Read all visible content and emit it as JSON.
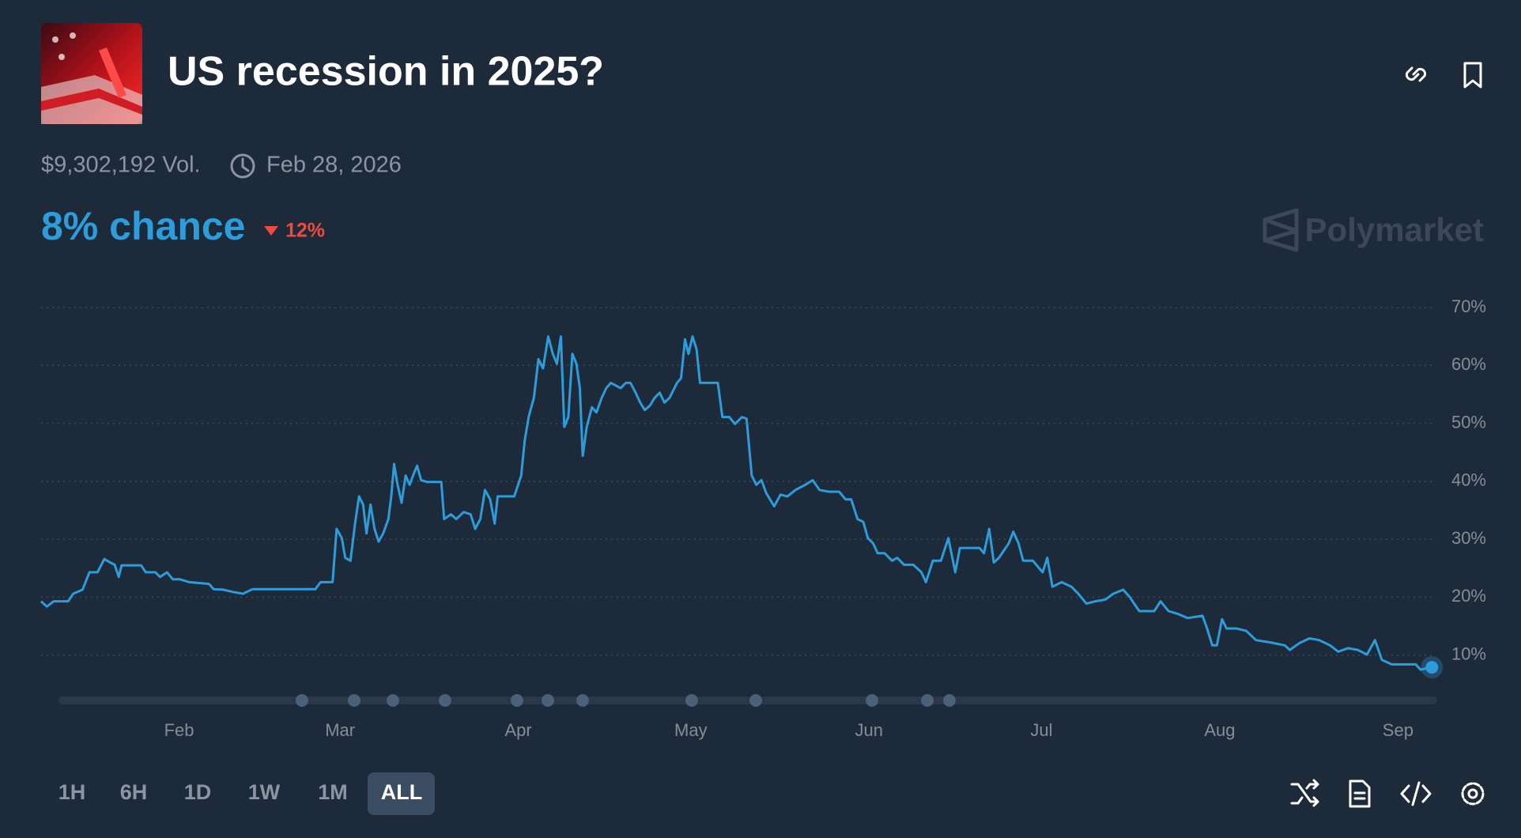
{
  "header": {
    "title": "US recession in 2025?",
    "volume": "$9,302,192 Vol.",
    "end_date": "Feb 28, 2026",
    "chance": "8% chance",
    "change": "12%",
    "brand": "Polymarket"
  },
  "range_buttons": [
    "1H",
    "6H",
    "1D",
    "1W",
    "1M",
    "ALL"
  ],
  "chart_data": {
    "type": "line",
    "color": "#2d9cdb",
    "grid": true,
    "xlim": [
      8,
      250
    ],
    "xticks": [
      {
        "value": 32,
        "label": "Feb"
      },
      {
        "value": 60,
        "label": "Mar"
      },
      {
        "value": 91,
        "label": "Apr"
      },
      {
        "value": 121,
        "label": "May"
      },
      {
        "value": 152,
        "label": "Jun"
      },
      {
        "value": 182,
        "label": "Jul"
      },
      {
        "value": 213,
        "label": "Aug"
      },
      {
        "value": 244,
        "label": "Sep"
      }
    ],
    "ylim": [
      0,
      70
    ],
    "yticks": [
      {
        "value": 10,
        "label": "10%"
      },
      {
        "value": 20,
        "label": "20%"
      },
      {
        "value": 30,
        "label": "30%"
      },
      {
        "value": 40,
        "label": "40%"
      },
      {
        "value": 50,
        "label": "50%"
      },
      {
        "value": 60,
        "label": "60%"
      },
      {
        "value": 70,
        "label": "70%"
      }
    ],
    "x": [
      8.0,
      9.0,
      10.2,
      12.7,
      13.6,
      15.2,
      16.4,
      17.8,
      19.0,
      20.0,
      20.8,
      21.5,
      22.0,
      25.4,
      26.2,
      27.9,
      28.7,
      29.9,
      30.9,
      32.1,
      33.8,
      37.2,
      38.0,
      39.7,
      41.4,
      43.1,
      44.8,
      46.4,
      51.5,
      55.7,
      56.6,
      58.7,
      59.4,
      60.3,
      60.9,
      61.8,
      62.6,
      63.3,
      64.0,
      64.6,
      65.3,
      66.0,
      66.7,
      67.5,
      68.4,
      68.9,
      69.4,
      70.0,
      70.7,
      71.4,
      72.1,
      72.7,
      73.4,
      74.1,
      75.1,
      77.6,
      78.1,
      79.3,
      80.2,
      81.5,
      82.7,
      83.5,
      84.4,
      85.2,
      86.1,
      86.9,
      87.4,
      90.3,
      91.5,
      92.1,
      92.8,
      93.7,
      94.5,
      95.3,
      96.2,
      97.0,
      97.7,
      98.4,
      99.0,
      99.7,
      100.4,
      101.1,
      101.7,
      102.2,
      102.9,
      103.8,
      104.6,
      105.5,
      106.3,
      107.1,
      108.8,
      109.7,
      110.5,
      111.4,
      112.2,
      113.0,
      113.9,
      114.7,
      115.6,
      116.4,
      117.3,
      118.6,
      119.3,
      120.0,
      120.6,
      121.3,
      122.0,
      122.6,
      125.7,
      126.5,
      127.7,
      128.7,
      129.9,
      130.7,
      131.6,
      132.4,
      133.3,
      134.1,
      135.5,
      136.6,
      137.8,
      139.2,
      140.9,
      142.2,
      143.4,
      145.1,
      146.8,
      147.9,
      148.9,
      150.0,
      151.0,
      151.8,
      152.7,
      153.5,
      154.7,
      156.0,
      156.9,
      158.1,
      159.7,
      161.1,
      161.9,
      163.1,
      164.5,
      165.8,
      167.0,
      167.8,
      169.5,
      171.2,
      172.0,
      172.9,
      173.7,
      174.6,
      176.3,
      177.1,
      178.0,
      178.8,
      180.5,
      182.2,
      183.0,
      183.9,
      185.5,
      187.2,
      188.4,
      189.8,
      191.4,
      193.1,
      194.5,
      196.2,
      197.3,
      199.0,
      201.6,
      202.7,
      204.1,
      205.8,
      207.4,
      210.0,
      210.8,
      211.7,
      212.5,
      213.4,
      214.2,
      215.9,
      217.6,
      219.3,
      221.8,
      224.3,
      225.2,
      226.9,
      228.6,
      230.3,
      232.2,
      233.6,
      235.3,
      237.0,
      238.6,
      240.0,
      241.2,
      242.9,
      244.5,
      247.1,
      247.9,
      249.9
    ],
    "values": [
      19.3,
      18.4,
      19.3,
      19.3,
      20.6,
      21.3,
      24.3,
      24.3,
      26.6,
      26.0,
      25.6,
      23.5,
      25.5,
      25.5,
      24.3,
      24.3,
      23.5,
      24.3,
      23.1,
      23.1,
      22.6,
      22.3,
      21.4,
      21.3,
      20.9,
      20.6,
      21.4,
      21.4,
      21.4,
      21.4,
      22.6,
      22.6,
      31.8,
      30.2,
      26.8,
      26.3,
      32.7,
      37.4,
      36.0,
      31.0,
      36.0,
      31.8,
      29.6,
      31.0,
      33.5,
      37.4,
      43.0,
      39.4,
      36.3,
      41.0,
      39.4,
      41.0,
      42.7,
      40.2,
      39.9,
      39.9,
      33.5,
      34.3,
      33.5,
      34.7,
      34.3,
      31.8,
      33.5,
      38.5,
      36.9,
      32.7,
      37.4,
      37.4,
      41.0,
      46.9,
      51.1,
      54.4,
      61.1,
      59.5,
      65.0,
      62.0,
      60.3,
      65.0,
      49.4,
      51.1,
      62.0,
      60.3,
      56.1,
      44.4,
      49.4,
      52.8,
      51.9,
      54.4,
      56.1,
      57.0,
      56.1,
      57.0,
      57.0,
      55.3,
      53.6,
      52.3,
      53.1,
      54.4,
      55.3,
      53.6,
      54.4,
      57.0,
      57.8,
      64.5,
      62.0,
      65.0,
      62.8,
      57.0,
      57.0,
      51.1,
      51.1,
      49.9,
      51.1,
      50.8,
      41.0,
      39.4,
      40.2,
      38.0,
      35.7,
      37.7,
      37.4,
      38.5,
      39.4,
      40.2,
      38.5,
      38.2,
      38.2,
      36.9,
      36.9,
      33.5,
      33.0,
      30.2,
      29.3,
      27.6,
      27.6,
      26.3,
      26.8,
      25.6,
      25.6,
      24.3,
      22.6,
      26.3,
      26.3,
      30.2,
      24.3,
      28.5,
      28.5,
      28.5,
      27.6,
      31.8,
      26.0,
      26.8,
      29.3,
      31.3,
      29.3,
      26.3,
      26.3,
      24.3,
      26.8,
      21.8,
      22.6,
      21.8,
      20.6,
      18.9,
      19.3,
      19.6,
      20.6,
      21.3,
      20.1,
      17.6,
      17.6,
      19.3,
      17.6,
      17.1,
      16.4,
      16.8,
      14.6,
      11.7,
      11.7,
      16.2,
      14.6,
      14.6,
      14.2,
      12.6,
      12.2,
      11.7,
      10.9,
      12.1,
      12.9,
      12.6,
      11.7,
      10.6,
      11.2,
      10.9,
      10.1,
      12.6,
      9.2,
      8.4,
      8.4,
      8.4,
      7.5,
      7.9
    ]
  }
}
